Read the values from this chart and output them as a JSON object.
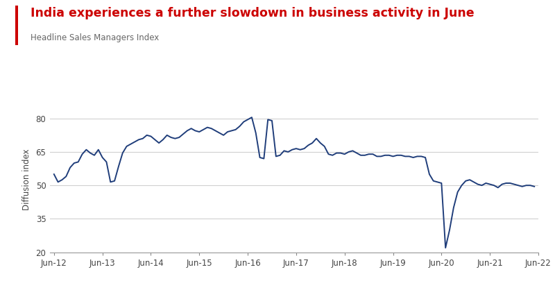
{
  "title": "India experiences a further slowdown in business activity in June",
  "subtitle": "Headline Sales Managers Index",
  "ylabel": "Diffusion index",
  "title_color": "#cc0000",
  "line_color": "#1f3d7a",
  "background_color": "#ffffff",
  "grid_color": "#d0d0d0",
  "ylim": [
    20,
    85
  ],
  "yticks": [
    20,
    35,
    50,
    65,
    80
  ],
  "xtick_labels": [
    "Jun-12",
    "Jun-13",
    "Jun-14",
    "Jun-15",
    "Jun-16",
    "Jun-17",
    "Jun-18",
    "Jun-19",
    "Jun-20",
    "Jun-21",
    "Jun-22"
  ],
  "series": [
    55.0,
    51.5,
    52.5,
    54.0,
    58.0,
    60.0,
    60.5,
    64.0,
    66.0,
    64.5,
    63.5,
    66.0,
    62.5,
    60.5,
    51.5,
    52.0,
    58.5,
    64.5,
    67.5,
    68.5,
    69.5,
    70.5,
    71.0,
    72.5,
    72.0,
    70.5,
    69.0,
    70.5,
    72.5,
    71.5,
    71.0,
    71.5,
    73.0,
    74.5,
    75.5,
    74.5,
    74.0,
    75.0,
    76.0,
    75.5,
    74.5,
    73.5,
    72.5,
    74.0,
    74.5,
    75.0,
    76.5,
    78.5,
    79.5,
    80.5,
    73.5,
    62.5,
    62.0,
    79.5,
    79.0,
    63.0,
    63.5,
    65.5,
    65.0,
    66.0,
    66.5,
    66.0,
    66.5,
    68.0,
    69.0,
    71.0,
    69.0,
    67.5,
    64.0,
    63.5,
    64.5,
    64.5,
    64.0,
    65.0,
    65.5,
    64.5,
    63.5,
    63.5,
    64.0,
    64.0,
    63.0,
    63.0,
    63.5,
    63.5,
    63.0,
    63.5,
    63.5,
    63.0,
    63.0,
    62.5,
    63.0,
    63.0,
    62.5,
    55.0,
    52.0,
    51.5,
    51.0,
    22.0,
    30.0,
    40.0,
    47.0,
    50.0,
    52.0,
    52.5,
    51.5,
    50.5,
    50.0,
    51.0,
    50.5,
    50.0,
    49.0,
    50.5,
    51.0,
    51.0,
    50.5,
    50.0,
    49.5,
    50.0,
    50.0,
    49.5
  ],
  "accent_color": "#cc0000"
}
